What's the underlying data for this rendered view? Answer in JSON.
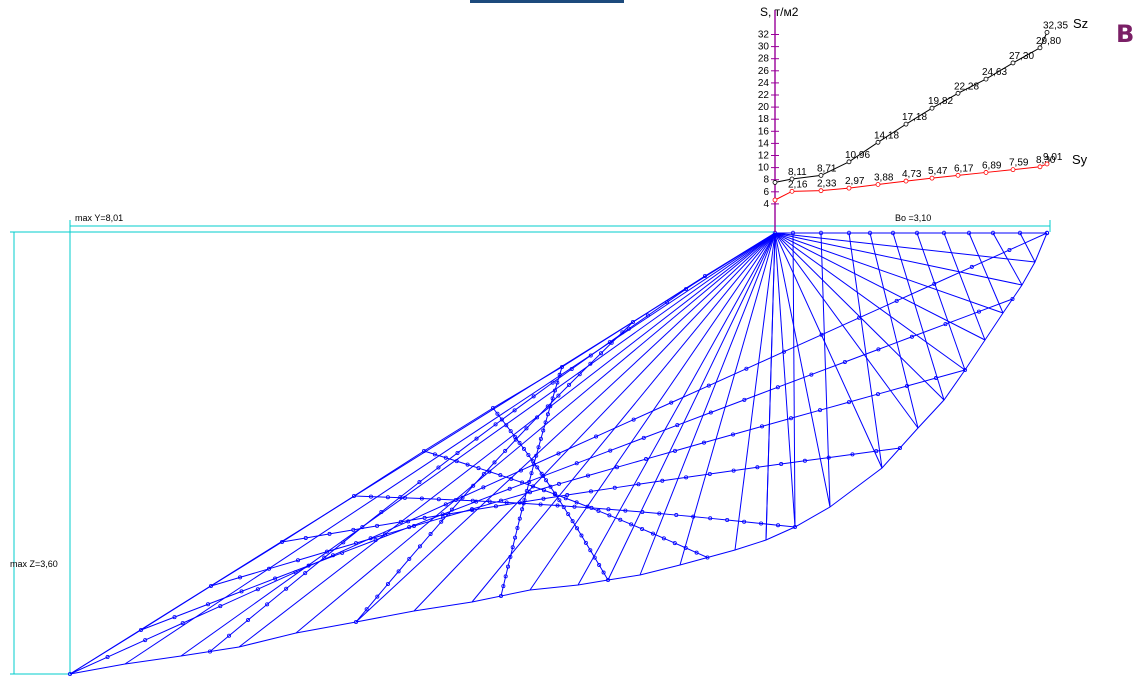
{
  "top_bar_color": "#1c4a7c",
  "badge": {
    "text": "B",
    "color": "#7a1f66"
  },
  "colors": {
    "mesh": "#0000ff",
    "dims": "#00cccc",
    "axis": "#990099",
    "sz": "#000000",
    "sy": "#ff0000"
  },
  "labels": {
    "max_y": "max Y=8,01",
    "max_z": "max Z=3,60",
    "bo": "Bo =3,10"
  },
  "chart_data": {
    "type": "line",
    "title": "S, т/м2",
    "ylabel": "S, т/м2",
    "ylim": [
      2,
      32
    ],
    "yticks": [
      "4",
      "6",
      "8",
      "10",
      "12",
      "14",
      "16",
      "18",
      "20",
      "22",
      "24",
      "26",
      "28",
      "30",
      "32"
    ],
    "series": [
      {
        "name": "Sz",
        "values": [
          7.55,
          8.11,
          8.71,
          10.96,
          14.18,
          17.18,
          19.82,
          22.28,
          24.63,
          27.3,
          29.8,
          32.35
        ],
        "labels": [
          "",
          "8,11",
          "8,71",
          "10,96",
          "14,18",
          "17,18",
          "19,82",
          "22,28",
          "24,63",
          "27,30",
          "29,80",
          "32,35"
        ]
      },
      {
        "name": "Sy",
        "values": [
          0.0,
          2.16,
          2.33,
          2.97,
          3.88,
          4.73,
          5.47,
          6.17,
          6.89,
          7.59,
          8.3,
          9.01
        ],
        "labels": [
          "",
          "2,16",
          "2,33",
          "2,97",
          "3,88",
          "4,73",
          "5,47",
          "6,17",
          "6,89",
          "7,59",
          "8,30",
          "9,01"
        ]
      }
    ]
  }
}
